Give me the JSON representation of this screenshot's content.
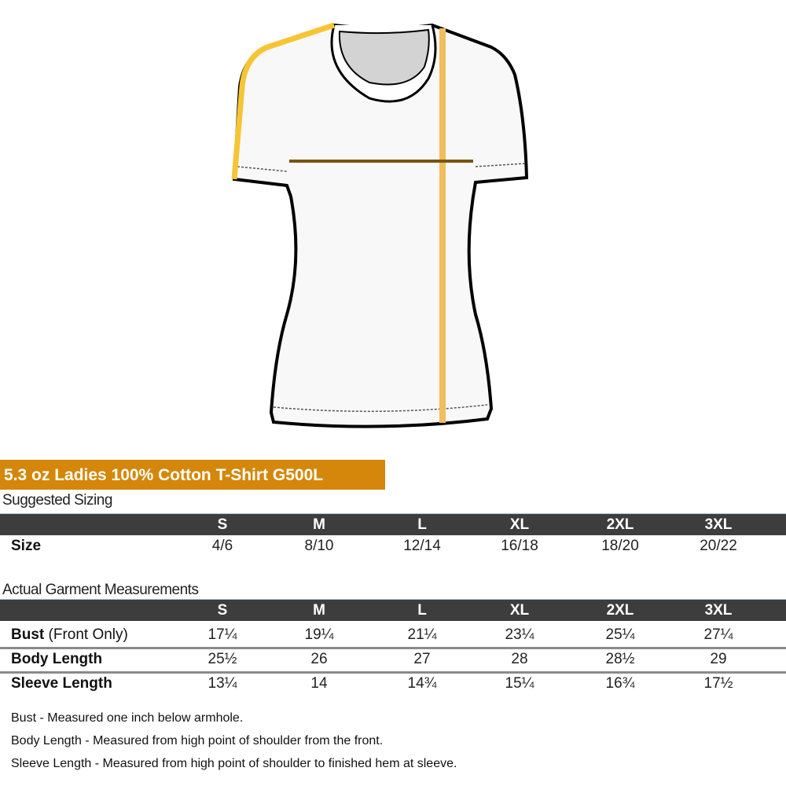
{
  "product_title": "5.3 oz Ladies 100% Cotton T-Shirt G500L",
  "colors": {
    "title_bg": "#d4870a",
    "header_bg": "#3d3d3d",
    "sleeve_line": "#f7c534",
    "length_line": "#f2bd5c",
    "bust_line": "#7a5410"
  },
  "suggested": {
    "heading": "Suggested Sizing",
    "sizes": [
      "S",
      "M",
      "L",
      "XL",
      "2XL",
      "3XL"
    ],
    "rows": [
      {
        "label": "Size",
        "values": [
          "4/6",
          "8/10",
          "12/14",
          "16/18",
          "18/20",
          "20/22"
        ]
      }
    ]
  },
  "actual": {
    "heading": "Actual Garment Measurements",
    "sizes": [
      "S",
      "M",
      "L",
      "XL",
      "2XL",
      "3XL"
    ],
    "rows": [
      {
        "label": "Bust",
        "label_extra": " (Front Only)",
        "values": [
          "17¼",
          "19¼",
          "21¼",
          "23¼",
          "25¼",
          "27¼"
        ]
      },
      {
        "label": "Body Length",
        "label_extra": "",
        "values": [
          "25½",
          "26",
          "27",
          "28",
          "28½",
          "29"
        ]
      },
      {
        "label": "Sleeve Length",
        "label_extra": "",
        "values": [
          "13¼",
          "14",
          "14¾",
          "15¼",
          "16¾",
          "17½"
        ]
      }
    ]
  },
  "notes": [
    "Bust - Measured one inch below armhole.",
    "Body Length - Measured from high point of shoulder from the front.",
    "Sleeve Length - Measured from high point of shoulder to finished hem at sleeve."
  ]
}
